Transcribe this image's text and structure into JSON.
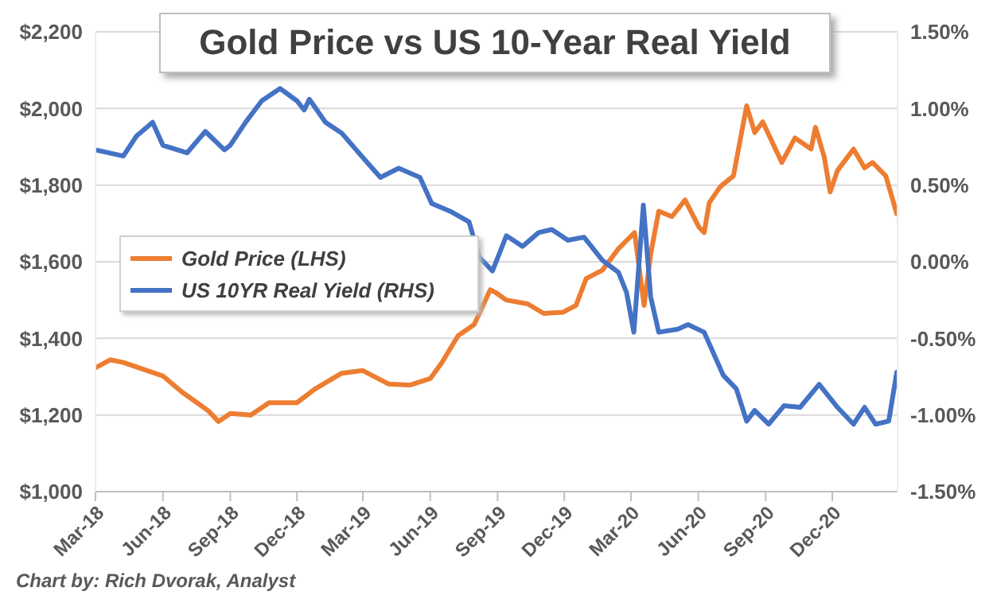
{
  "chart_data": {
    "type": "line",
    "title": "Gold Price vs US 10-Year Real Yield",
    "annotations": [
      "Chart by: Rich Dvorak, Analyst"
    ],
    "xlim": [
      "2018-03-01",
      "2021-02-28"
    ],
    "xticks": [
      {
        "value": "2018-03-01",
        "label": "Mar-18"
      },
      {
        "value": "2018-06-01",
        "label": "Jun-18"
      },
      {
        "value": "2018-09-01",
        "label": "Sep-18"
      },
      {
        "value": "2018-12-01",
        "label": "Dec-18"
      },
      {
        "value": "2019-03-01",
        "label": "Mar-19"
      },
      {
        "value": "2019-06-01",
        "label": "Jun-19"
      },
      {
        "value": "2019-09-01",
        "label": "Sep-19"
      },
      {
        "value": "2019-12-01",
        "label": "Dec-19"
      },
      {
        "value": "2020-03-01",
        "label": "Mar-20"
      },
      {
        "value": "2020-06-01",
        "label": "Jun-20"
      },
      {
        "value": "2020-09-01",
        "label": "Sep-20"
      },
      {
        "value": "2020-12-01",
        "label": "Dec-20"
      }
    ],
    "ylim": [
      1000,
      2200
    ],
    "yticks": [
      {
        "value": 1000,
        "label": "$1,000"
      },
      {
        "value": 1200,
        "label": "$1,200"
      },
      {
        "value": 1400,
        "label": "$1,400"
      },
      {
        "value": 1600,
        "label": "$1,600"
      },
      {
        "value": 1800,
        "label": "$1,800"
      },
      {
        "value": 2000,
        "label": "$2,000"
      },
      {
        "value": 2200,
        "label": "$2,200"
      }
    ],
    "y2lim": [
      -1.5,
      1.5
    ],
    "y2ticks": [
      {
        "value": -1.5,
        "label": "-1.50%"
      },
      {
        "value": -1,
        "label": "-1.00%"
      },
      {
        "value": -0.5,
        "label": "-0.50%"
      },
      {
        "value": 0,
        "label": "0.00%"
      },
      {
        "value": 0.5,
        "label": "0.50%"
      },
      {
        "value": 1,
        "label": "1.00%"
      },
      {
        "value": 1.5,
        "label": "1.50%"
      }
    ],
    "grid": "y",
    "legend": "left",
    "series": [
      {
        "name": "Gold Price (LHS)",
        "color": "#ed7d31",
        "x": [
          "2018-03-01",
          "2018-03-21",
          "2018-04-08",
          "2018-06-01",
          "2018-06-27",
          "2018-08-02",
          "2018-08-16",
          "2018-09-01",
          "2018-09-29",
          "2018-10-24",
          "2018-12-01",
          "2018-12-25",
          "2019-01-31",
          "2019-03-01",
          "2019-04-05",
          "2019-05-04",
          "2019-06-01",
          "2019-06-17",
          "2019-07-09",
          "2019-07-31",
          "2019-08-22",
          "2019-08-29",
          "2019-09-13",
          "2019-10-12",
          "2019-11-03",
          "2019-11-29",
          "2019-12-17",
          "2019-12-31",
          "2020-01-22",
          "2020-02-13",
          "2020-03-06",
          "2020-03-19",
          "2020-03-28",
          "2020-04-08",
          "2020-04-26",
          "2020-05-14",
          "2020-06-02",
          "2020-06-09",
          "2020-06-16",
          "2020-07-01",
          "2020-07-19",
          "2020-08-06",
          "2020-08-17",
          "2020-08-28",
          "2020-09-23",
          "2020-10-11",
          "2020-11-02",
          "2020-11-08",
          "2020-11-20",
          "2020-11-28",
          "2020-12-08",
          "2020-12-30",
          "2021-01-14",
          "2021-01-25",
          "2021-02-12",
          "2021-02-27"
        ],
        "values": [
          1323,
          1344,
          1337,
          1302,
          1260,
          1211,
          1183,
          1204,
          1200,
          1232,
          1232,
          1267,
          1309,
          1316,
          1281,
          1278,
          1295,
          1337,
          1407,
          1436,
          1527,
          1520,
          1500,
          1490,
          1465,
          1468,
          1486,
          1556,
          1578,
          1634,
          1676,
          1486,
          1620,
          1732,
          1718,
          1761,
          1690,
          1676,
          1754,
          1796,
          1824,
          2007,
          1937,
          1965,
          1859,
          1923,
          1894,
          1951,
          1873,
          1782,
          1838,
          1894,
          1845,
          1859,
          1824,
          1725
        ]
      },
      {
        "name": "US 10YR Real Yield (RHS)",
        "color": "#4472c4",
        "axis": "y2",
        "x": [
          "2018-03-01",
          "2018-04-08",
          "2018-04-26",
          "2018-05-18",
          "2018-06-01",
          "2018-07-04",
          "2018-07-29",
          "2018-08-24",
          "2018-09-01",
          "2018-09-22",
          "2018-10-14",
          "2018-11-08",
          "2018-12-01",
          "2018-12-11",
          "2018-12-18",
          "2019-01-09",
          "2019-01-31",
          "2019-03-01",
          "2019-03-25",
          "2019-04-19",
          "2019-05-18",
          "2019-06-03",
          "2019-06-28",
          "2019-07-24",
          "2019-08-07",
          "2019-08-25",
          "2019-09-13",
          "2019-10-05",
          "2019-10-27",
          "2019-11-14",
          "2019-12-06",
          "2019-12-28",
          "2020-01-22",
          "2020-02-13",
          "2020-02-24",
          "2020-03-05",
          "2020-03-18",
          "2020-03-28",
          "2020-04-08",
          "2020-05-04",
          "2020-05-18",
          "2020-06-09",
          "2020-07-05",
          "2020-07-23",
          "2020-08-06",
          "2020-08-17",
          "2020-09-05",
          "2020-09-26",
          "2020-10-18",
          "2020-11-13",
          "2020-12-08",
          "2020-12-30",
          "2021-01-14",
          "2021-01-29",
          "2021-02-16",
          "2021-02-27"
        ],
        "values": [
          0.73,
          0.69,
          0.82,
          0.91,
          0.76,
          0.71,
          0.85,
          0.73,
          0.76,
          0.91,
          1.05,
          1.13,
          1.05,
          0.99,
          1.06,
          0.91,
          0.84,
          0.68,
          0.55,
          0.61,
          0.55,
          0.38,
          0.33,
          0.26,
          0.03,
          -0.06,
          0.17,
          0.1,
          0.19,
          0.21,
          0.14,
          0.16,
          0.01,
          -0.07,
          -0.2,
          -0.46,
          0.37,
          -0.23,
          -0.46,
          -0.44,
          -0.41,
          -0.46,
          -0.74,
          -0.83,
          -1.04,
          -0.97,
          -1.06,
          -0.94,
          -0.95,
          -0.8,
          -0.95,
          -1.06,
          -0.95,
          -1.06,
          -1.04,
          -0.72
        ]
      }
    ]
  }
}
